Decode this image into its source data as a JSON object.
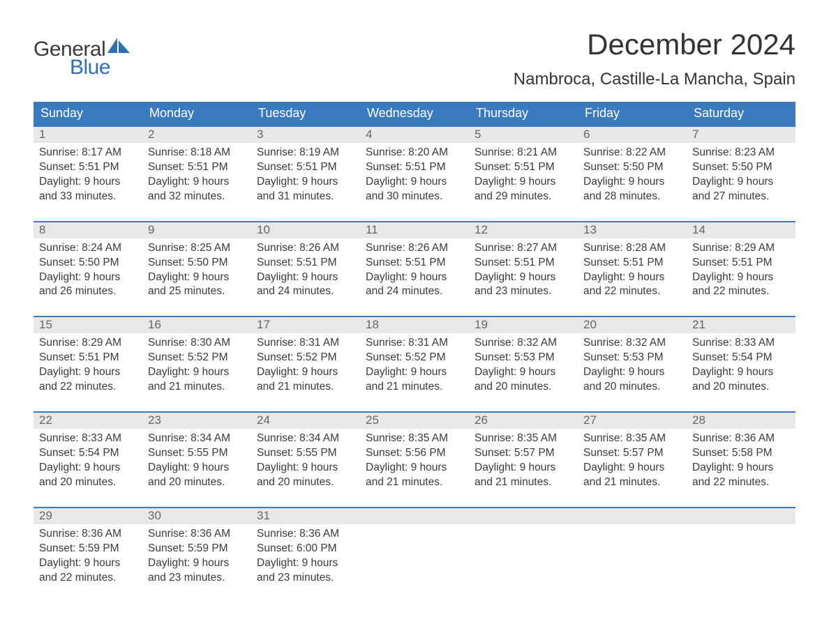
{
  "logo": {
    "top": "General",
    "bottom": "Blue"
  },
  "title": "December 2024",
  "location": "Nambroca, Castille-La Mancha, Spain",
  "colors": {
    "header_bg": "#3a7bbf",
    "header_text": "#ffffff",
    "daynum_bg": "#e8e8e8",
    "daynum_text": "#666666",
    "body_text": "#3a3a3a",
    "week_border": "#3a7bbf",
    "logo_blue": "#2f6fb3",
    "page_bg": "#ffffff"
  },
  "typography": {
    "title_fontsize": 42,
    "location_fontsize": 24,
    "dow_fontsize": 18,
    "daynum_fontsize": 17,
    "body_fontsize": 15.5,
    "font_family": "Arial"
  },
  "days_of_week": [
    "Sunday",
    "Monday",
    "Tuesday",
    "Wednesday",
    "Thursday",
    "Friday",
    "Saturday"
  ],
  "weeks": [
    [
      {
        "n": "1",
        "sunrise": "8:17 AM",
        "sunset": "5:51 PM",
        "dl1": "Daylight: 9 hours",
        "dl2": "and 33 minutes."
      },
      {
        "n": "2",
        "sunrise": "8:18 AM",
        "sunset": "5:51 PM",
        "dl1": "Daylight: 9 hours",
        "dl2": "and 32 minutes."
      },
      {
        "n": "3",
        "sunrise": "8:19 AM",
        "sunset": "5:51 PM",
        "dl1": "Daylight: 9 hours",
        "dl2": "and 31 minutes."
      },
      {
        "n": "4",
        "sunrise": "8:20 AM",
        "sunset": "5:51 PM",
        "dl1": "Daylight: 9 hours",
        "dl2": "and 30 minutes."
      },
      {
        "n": "5",
        "sunrise": "8:21 AM",
        "sunset": "5:51 PM",
        "dl1": "Daylight: 9 hours",
        "dl2": "and 29 minutes."
      },
      {
        "n": "6",
        "sunrise": "8:22 AM",
        "sunset": "5:50 PM",
        "dl1": "Daylight: 9 hours",
        "dl2": "and 28 minutes."
      },
      {
        "n": "7",
        "sunrise": "8:23 AM",
        "sunset": "5:50 PM",
        "dl1": "Daylight: 9 hours",
        "dl2": "and 27 minutes."
      }
    ],
    [
      {
        "n": "8",
        "sunrise": "8:24 AM",
        "sunset": "5:50 PM",
        "dl1": "Daylight: 9 hours",
        "dl2": "and 26 minutes."
      },
      {
        "n": "9",
        "sunrise": "8:25 AM",
        "sunset": "5:50 PM",
        "dl1": "Daylight: 9 hours",
        "dl2": "and 25 minutes."
      },
      {
        "n": "10",
        "sunrise": "8:26 AM",
        "sunset": "5:51 PM",
        "dl1": "Daylight: 9 hours",
        "dl2": "and 24 minutes."
      },
      {
        "n": "11",
        "sunrise": "8:26 AM",
        "sunset": "5:51 PM",
        "dl1": "Daylight: 9 hours",
        "dl2": "and 24 minutes."
      },
      {
        "n": "12",
        "sunrise": "8:27 AM",
        "sunset": "5:51 PM",
        "dl1": "Daylight: 9 hours",
        "dl2": "and 23 minutes."
      },
      {
        "n": "13",
        "sunrise": "8:28 AM",
        "sunset": "5:51 PM",
        "dl1": "Daylight: 9 hours",
        "dl2": "and 22 minutes."
      },
      {
        "n": "14",
        "sunrise": "8:29 AM",
        "sunset": "5:51 PM",
        "dl1": "Daylight: 9 hours",
        "dl2": "and 22 minutes."
      }
    ],
    [
      {
        "n": "15",
        "sunrise": "8:29 AM",
        "sunset": "5:51 PM",
        "dl1": "Daylight: 9 hours",
        "dl2": "and 22 minutes."
      },
      {
        "n": "16",
        "sunrise": "8:30 AM",
        "sunset": "5:52 PM",
        "dl1": "Daylight: 9 hours",
        "dl2": "and 21 minutes."
      },
      {
        "n": "17",
        "sunrise": "8:31 AM",
        "sunset": "5:52 PM",
        "dl1": "Daylight: 9 hours",
        "dl2": "and 21 minutes."
      },
      {
        "n": "18",
        "sunrise": "8:31 AM",
        "sunset": "5:52 PM",
        "dl1": "Daylight: 9 hours",
        "dl2": "and 21 minutes."
      },
      {
        "n": "19",
        "sunrise": "8:32 AM",
        "sunset": "5:53 PM",
        "dl1": "Daylight: 9 hours",
        "dl2": "and 20 minutes."
      },
      {
        "n": "20",
        "sunrise": "8:32 AM",
        "sunset": "5:53 PM",
        "dl1": "Daylight: 9 hours",
        "dl2": "and 20 minutes."
      },
      {
        "n": "21",
        "sunrise": "8:33 AM",
        "sunset": "5:54 PM",
        "dl1": "Daylight: 9 hours",
        "dl2": "and 20 minutes."
      }
    ],
    [
      {
        "n": "22",
        "sunrise": "8:33 AM",
        "sunset": "5:54 PM",
        "dl1": "Daylight: 9 hours",
        "dl2": "and 20 minutes."
      },
      {
        "n": "23",
        "sunrise": "8:34 AM",
        "sunset": "5:55 PM",
        "dl1": "Daylight: 9 hours",
        "dl2": "and 20 minutes."
      },
      {
        "n": "24",
        "sunrise": "8:34 AM",
        "sunset": "5:55 PM",
        "dl1": "Daylight: 9 hours",
        "dl2": "and 20 minutes."
      },
      {
        "n": "25",
        "sunrise": "8:35 AM",
        "sunset": "5:56 PM",
        "dl1": "Daylight: 9 hours",
        "dl2": "and 21 minutes."
      },
      {
        "n": "26",
        "sunrise": "8:35 AM",
        "sunset": "5:57 PM",
        "dl1": "Daylight: 9 hours",
        "dl2": "and 21 minutes."
      },
      {
        "n": "27",
        "sunrise": "8:35 AM",
        "sunset": "5:57 PM",
        "dl1": "Daylight: 9 hours",
        "dl2": "and 21 minutes."
      },
      {
        "n": "28",
        "sunrise": "8:36 AM",
        "sunset": "5:58 PM",
        "dl1": "Daylight: 9 hours",
        "dl2": "and 22 minutes."
      }
    ],
    [
      {
        "n": "29",
        "sunrise": "8:36 AM",
        "sunset": "5:59 PM",
        "dl1": "Daylight: 9 hours",
        "dl2": "and 22 minutes."
      },
      {
        "n": "30",
        "sunrise": "8:36 AM",
        "sunset": "5:59 PM",
        "dl1": "Daylight: 9 hours",
        "dl2": "and 23 minutes."
      },
      {
        "n": "31",
        "sunrise": "8:36 AM",
        "sunset": "6:00 PM",
        "dl1": "Daylight: 9 hours",
        "dl2": "and 23 minutes."
      },
      null,
      null,
      null,
      null
    ]
  ],
  "labels": {
    "sunrise_prefix": "Sunrise: ",
    "sunset_prefix": "Sunset: "
  }
}
